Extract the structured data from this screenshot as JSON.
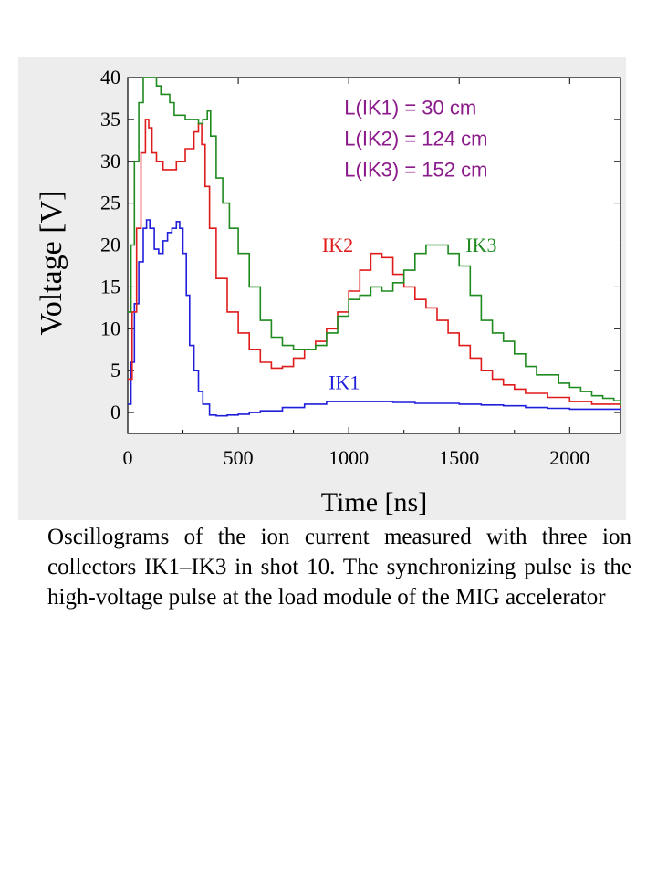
{
  "caption": "Oscillograms of the ion current measured with three ion collectors IK1–IK3 in shot 10. The synchronizing pulse is the high-voltage pulse at the load module of the MIG accelerator",
  "chart_data": {
    "type": "line",
    "title": "",
    "xlabel": "Time [ns]",
    "ylabel": "Voltage [V]",
    "xlim": [
      0,
      2230
    ],
    "ylim": [
      -2.5,
      40
    ],
    "xticks": [
      0,
      500,
      1000,
      1500,
      2000
    ],
    "yticks": [
      0,
      5,
      10,
      15,
      20,
      25,
      30,
      35,
      40
    ],
    "grid": false,
    "legend": "none; series labels placed next to curves",
    "annotations": [
      "L(IK1) = 30 cm",
      "L(IK2) = 124 cm",
      "L(IK3) = 152 cm"
    ],
    "annotation_color": "#8b1a8b",
    "series": [
      {
        "name": "IK1",
        "color": "#1f1fdc",
        "points": [
          [
            0,
            1
          ],
          [
            15,
            6
          ],
          [
            30,
            13
          ],
          [
            50,
            18
          ],
          [
            70,
            22
          ],
          [
            85,
            23
          ],
          [
            100,
            22
          ],
          [
            120,
            19.5
          ],
          [
            140,
            19
          ],
          [
            160,
            20.5
          ],
          [
            180,
            21.5
          ],
          [
            200,
            22
          ],
          [
            220,
            22.8
          ],
          [
            235,
            22
          ],
          [
            250,
            19
          ],
          [
            265,
            14
          ],
          [
            280,
            8
          ],
          [
            300,
            5
          ],
          [
            320,
            2.5
          ],
          [
            340,
            1
          ],
          [
            370,
            -0.3
          ],
          [
            400,
            -0.4
          ],
          [
            450,
            -0.3
          ],
          [
            500,
            -0.2
          ],
          [
            550,
            0
          ],
          [
            600,
            0.2
          ],
          [
            700,
            0.6
          ],
          [
            800,
            1
          ],
          [
            900,
            1.3
          ],
          [
            1000,
            1.3
          ],
          [
            1100,
            1.3
          ],
          [
            1200,
            1.2
          ],
          [
            1300,
            1.1
          ],
          [
            1400,
            1.1
          ],
          [
            1500,
            1
          ],
          [
            1600,
            0.9
          ],
          [
            1700,
            0.8
          ],
          [
            1800,
            0.6
          ],
          [
            1900,
            0.5
          ],
          [
            2000,
            0.4
          ],
          [
            2100,
            0.4
          ],
          [
            2230,
            0.3
          ]
        ]
      },
      {
        "name": "IK2",
        "color": "#e01b1b",
        "points": [
          [
            0,
            4
          ],
          [
            20,
            12
          ],
          [
            40,
            22
          ],
          [
            60,
            31
          ],
          [
            80,
            35
          ],
          [
            95,
            34
          ],
          [
            110,
            31
          ],
          [
            130,
            30
          ],
          [
            160,
            29
          ],
          [
            190,
            29
          ],
          [
            220,
            30
          ],
          [
            260,
            31.5
          ],
          [
            300,
            33.5
          ],
          [
            320,
            34.5
          ],
          [
            335,
            32
          ],
          [
            350,
            27
          ],
          [
            370,
            22
          ],
          [
            400,
            16
          ],
          [
            450,
            12
          ],
          [
            500,
            9.5
          ],
          [
            550,
            7.5
          ],
          [
            600,
            6
          ],
          [
            650,
            5.3
          ],
          [
            700,
            5.5
          ],
          [
            750,
            6.5
          ],
          [
            800,
            7.5
          ],
          [
            850,
            8.5
          ],
          [
            900,
            10
          ],
          [
            950,
            12
          ],
          [
            1000,
            14.5
          ],
          [
            1050,
            17
          ],
          [
            1100,
            19
          ],
          [
            1150,
            18.5
          ],
          [
            1200,
            16.5
          ],
          [
            1250,
            15
          ],
          [
            1300,
            13.5
          ],
          [
            1350,
            12.5
          ],
          [
            1400,
            11
          ],
          [
            1450,
            9.5
          ],
          [
            1500,
            8
          ],
          [
            1550,
            6.5
          ],
          [
            1600,
            5
          ],
          [
            1650,
            4
          ],
          [
            1700,
            3.3
          ],
          [
            1750,
            2.8
          ],
          [
            1800,
            2.3
          ],
          [
            1900,
            1.8
          ],
          [
            2000,
            1.3
          ],
          [
            2100,
            1
          ],
          [
            2230,
            0.6
          ]
        ]
      },
      {
        "name": "IK3",
        "color": "#1f8a1f",
        "points": [
          [
            0,
            12
          ],
          [
            15,
            20
          ],
          [
            30,
            30
          ],
          [
            50,
            37
          ],
          [
            70,
            40
          ],
          [
            90,
            40
          ],
          [
            110,
            40
          ],
          [
            130,
            39
          ],
          [
            150,
            38
          ],
          [
            170,
            38
          ],
          [
            190,
            37
          ],
          [
            210,
            35.5
          ],
          [
            240,
            35.5
          ],
          [
            260,
            35
          ],
          [
            290,
            35
          ],
          [
            320,
            34.5
          ],
          [
            340,
            35
          ],
          [
            360,
            36
          ],
          [
            375,
            33
          ],
          [
            400,
            28
          ],
          [
            430,
            25
          ],
          [
            460,
            22
          ],
          [
            500,
            19
          ],
          [
            550,
            15
          ],
          [
            600,
            11
          ],
          [
            650,
            9
          ],
          [
            700,
            8
          ],
          [
            750,
            7.5
          ],
          [
            800,
            7.5
          ],
          [
            850,
            8
          ],
          [
            900,
            9.5
          ],
          [
            950,
            11.5
          ],
          [
            1000,
            13.5
          ],
          [
            1050,
            14
          ],
          [
            1100,
            15
          ],
          [
            1150,
            14.5
          ],
          [
            1200,
            15.5
          ],
          [
            1250,
            17
          ],
          [
            1300,
            19
          ],
          [
            1350,
            20
          ],
          [
            1400,
            20
          ],
          [
            1450,
            19
          ],
          [
            1500,
            17.5
          ],
          [
            1550,
            14
          ],
          [
            1600,
            11
          ],
          [
            1650,
            9.5
          ],
          [
            1700,
            8.5
          ],
          [
            1750,
            7
          ],
          [
            1800,
            5.5
          ],
          [
            1850,
            4.5
          ],
          [
            1900,
            4.5
          ],
          [
            1950,
            3.5
          ],
          [
            2000,
            3
          ],
          [
            2050,
            2.5
          ],
          [
            2100,
            2
          ],
          [
            2150,
            1.7
          ],
          [
            2200,
            1.4
          ],
          [
            2230,
            0.8
          ]
        ]
      }
    ]
  }
}
